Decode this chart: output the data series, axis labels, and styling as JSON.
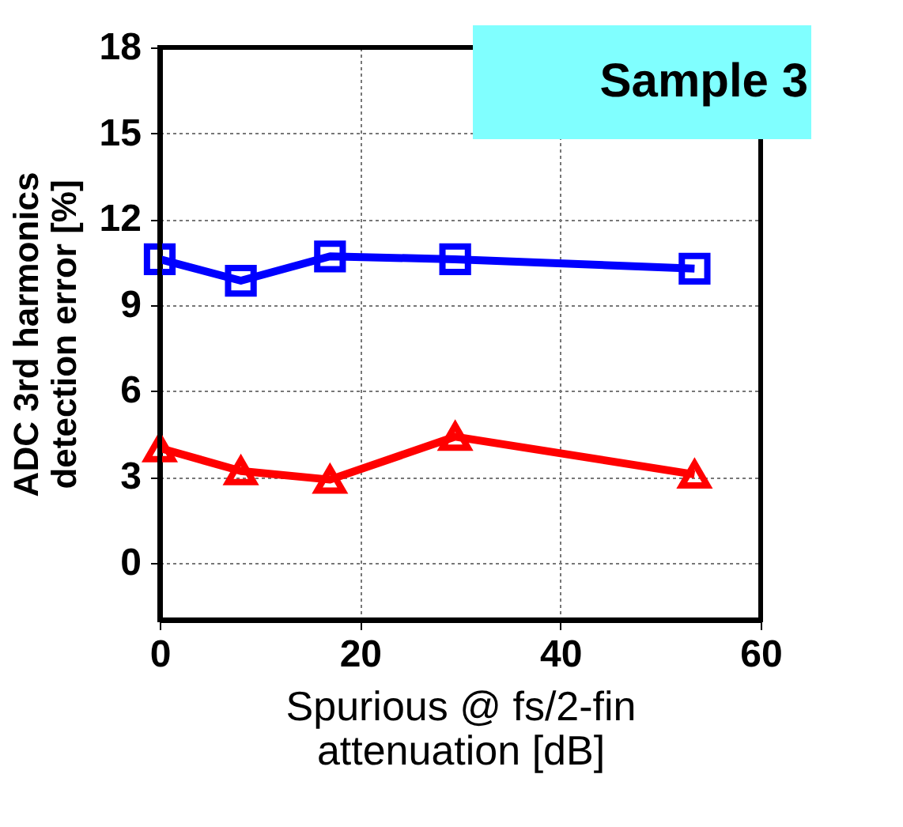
{
  "chart_data": {
    "type": "line",
    "xlabel": "Spurious @ fs/2-fin\nattenuation [dB]",
    "ylabel": "ADC 3rd harmonics\ndetection error [%]",
    "annotations": [
      "Sample 3"
    ],
    "x": [
      0,
      8.1,
      17.0,
      29.5,
      53.4
    ],
    "series": [
      {
        "color": "#0000ff",
        "values": [
          10.6,
          9.85,
          10.7,
          10.6,
          10.27
        ],
        "marker": "square"
      },
      {
        "color": "#ff0000",
        "values": [
          4.0,
          3.2,
          2.9,
          4.4,
          3.08
        ],
        "marker": "triangle"
      }
    ],
    "xlim": [
      0,
      60
    ],
    "xticks": [
      0,
      20,
      40,
      60
    ],
    "ylim": [
      -2,
      18
    ],
    "yticks": [
      0,
      3,
      6,
      9,
      12,
      15,
      18
    ],
    "grid": true,
    "line_style": "solid"
  }
}
